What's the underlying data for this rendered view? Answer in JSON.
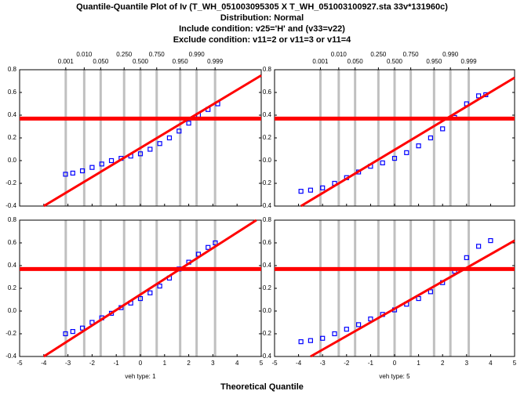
{
  "title": [
    "Quantile-Quantile Plot of  Iv (T_WH_051003095305 X T_WH_051003100927.sta 33v*131960c)",
    "Distribution: Normal",
    "Include condition: v25='H' and (v33=v22)",
    "Exclude condition: v11=2  or v11=3  or v11=4"
  ],
  "x_label": "Theoretical Quantile",
  "column_labels": [
    "veh type: 1",
    "veh type: 5"
  ],
  "xlim": [
    -5,
    5
  ],
  "xticks": [
    -5,
    -4,
    -3,
    -2,
    -1,
    0,
    1,
    2,
    3,
    4,
    5
  ],
  "ylim": [
    -0.4,
    0.8
  ],
  "yticks": [
    -0.4,
    -0.2,
    {
      "value": 0,
      "label": "0.0"
    },
    0.2,
    0.4,
    0.6,
    0.8
  ],
  "probability_ticks": [
    {
      "value": -3.09,
      "label": "0.001"
    },
    {
      "value": -2.326,
      "label": "0.010"
    },
    {
      "value": -1.645,
      "label": "0.050"
    },
    {
      "value": -0.674,
      "label": "0.250"
    },
    {
      "value": 0,
      "label": "0.500"
    },
    {
      "value": 0.674,
      "label": "0.750"
    },
    {
      "value": 1.645,
      "label": "0.950"
    },
    {
      "value": 2.326,
      "label": "0.990"
    },
    {
      "value": 3.09,
      "label": "0.999"
    }
  ],
  "chart_data": [
    {
      "type": "scatter",
      "hline": {
        "value": 0.37,
        "color": "#ff0000"
      },
      "reference_line": {
        "color": "#ff0000",
        "x": [
          -4,
          5
        ],
        "values": [
          -0.4,
          0.75
        ]
      },
      "series": [
        {
          "color": "#0000ff",
          "x": [
            -3.1,
            -2.8,
            -2.4,
            -2.0,
            -1.6,
            -1.2,
            -0.8,
            -0.4,
            0,
            0.4,
            0.8,
            1.2,
            1.6,
            2.0,
            2.4,
            2.8,
            3.2
          ],
          "values": [
            -0.12,
            -0.11,
            -0.09,
            -0.06,
            -0.03,
            0.0,
            0.02,
            0.04,
            0.06,
            0.1,
            0.15,
            0.2,
            0.26,
            0.33,
            0.4,
            0.45,
            0.5
          ]
        }
      ]
    },
    {
      "type": "scatter",
      "hline": {
        "value": 0.37,
        "color": "#ff0000"
      },
      "reference_line": {
        "color": "#ff0000",
        "x": [
          -3.9,
          5
        ],
        "values": [
          -0.4,
          0.73
        ]
      },
      "series": [
        {
          "color": "#0000ff",
          "x": [
            -3.9,
            -3.5,
            -3.0,
            -2.5,
            -2.0,
            -1.5,
            -1.0,
            -0.5,
            0,
            0.5,
            1.0,
            1.5,
            2.0,
            2.5,
            3.0,
            3.5,
            3.8
          ],
          "values": [
            -0.27,
            -0.26,
            -0.24,
            -0.2,
            -0.15,
            -0.1,
            -0.05,
            -0.02,
            0.02,
            0.07,
            0.13,
            0.2,
            0.28,
            0.38,
            0.5,
            0.57,
            0.58
          ]
        }
      ]
    },
    {
      "type": "scatter",
      "hline": {
        "value": 0.37,
        "color": "#ff0000"
      },
      "reference_line": {
        "color": "#ff0000",
        "x": [
          -4,
          4.8
        ],
        "values": [
          -0.4,
          0.8
        ]
      },
      "series": [
        {
          "color": "#0000ff",
          "x": [
            -3.1,
            -2.8,
            -2.4,
            -2.0,
            -1.6,
            -1.2,
            -0.8,
            -0.4,
            0,
            0.4,
            0.8,
            1.2,
            1.6,
            2.0,
            2.4,
            2.8,
            3.1
          ],
          "values": [
            -0.2,
            -0.18,
            -0.15,
            -0.1,
            -0.06,
            -0.02,
            0.03,
            0.07,
            0.11,
            0.16,
            0.22,
            0.29,
            0.37,
            0.43,
            0.5,
            0.56,
            0.6
          ]
        }
      ]
    },
    {
      "type": "scatter",
      "hline": {
        "value": 0.37,
        "color": "#ff0000"
      },
      "reference_line": {
        "color": "#ff0000",
        "x": [
          -3.5,
          5
        ],
        "values": [
          -0.4,
          0.62
        ]
      },
      "series": [
        {
          "color": "#0000ff",
          "x": [
            -3.9,
            -3.5,
            -3.0,
            -2.5,
            -2.0,
            -1.5,
            -1.0,
            -0.5,
            0,
            0.5,
            1.0,
            1.5,
            2.0,
            2.5,
            3.0,
            3.5,
            4.0
          ],
          "values": [
            -0.27,
            -0.26,
            -0.24,
            -0.2,
            -0.16,
            -0.12,
            -0.07,
            -0.03,
            0.01,
            0.06,
            0.11,
            0.17,
            0.25,
            0.35,
            0.47,
            0.57,
            0.62
          ]
        }
      ]
    }
  ]
}
